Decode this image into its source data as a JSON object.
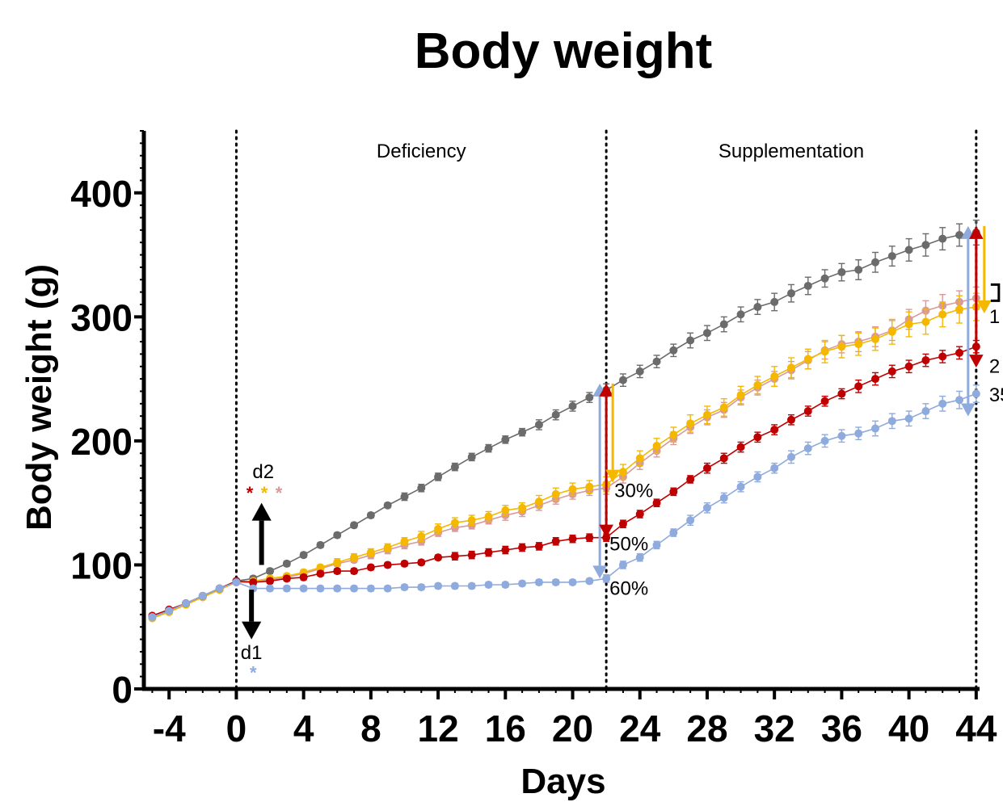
{
  "chart_data": {
    "type": "line",
    "title": "Body weight",
    "xlabel": "Days",
    "ylabel": "Body weight (g)",
    "xlim": [
      -5.5,
      44.2
    ],
    "ylim": [
      0,
      450
    ],
    "xticks": [
      -4,
      0,
      4,
      8,
      12,
      16,
      20,
      24,
      28,
      32,
      36,
      40,
      44
    ],
    "yticks": [
      0,
      100,
      200,
      300,
      400
    ],
    "phase_lines": [
      0,
      22,
      44
    ],
    "phases": [
      {
        "label": "Deficiency",
        "x": 11
      },
      {
        "label": "Supplementation",
        "x": 33
      }
    ],
    "series": [
      {
        "color": "#6b6b6b",
        "x": [
          -5,
          -4,
          -3,
          -2,
          -1,
          0,
          1,
          2,
          3,
          4,
          5,
          6,
          7,
          8,
          9,
          10,
          11,
          12,
          13,
          14,
          15,
          16,
          17,
          18,
          19,
          20,
          21,
          22,
          23,
          24,
          25,
          26,
          27,
          28,
          29,
          30,
          31,
          32,
          33,
          34,
          35,
          36,
          37,
          38,
          39,
          40,
          41,
          42,
          43,
          44
        ],
        "y": [
          58,
          63,
          69,
          75,
          81,
          87,
          89,
          95,
          101,
          108,
          116,
          124,
          132,
          140,
          148,
          155,
          162,
          171,
          179,
          187,
          194,
          201,
          207,
          213,
          221,
          228,
          235,
          241,
          249,
          256,
          264,
          273,
          281,
          287,
          294,
          302,
          308,
          312,
          319,
          325,
          331,
          336,
          338,
          344,
          349,
          354,
          358,
          363,
          366,
          368
        ],
        "err": [
          1,
          1,
          1,
          1,
          1,
          1,
          2,
          2,
          2,
          2,
          2,
          2,
          2,
          2,
          2,
          3,
          3,
          3,
          3,
          3,
          3,
          3,
          3,
          4,
          4,
          4,
          4,
          5,
          5,
          5,
          5,
          5,
          6,
          6,
          6,
          6,
          6,
          7,
          7,
          7,
          7,
          7,
          8,
          8,
          8,
          9,
          9,
          9,
          9,
          10
        ]
      },
      {
        "color": "#d89a9a",
        "x": [
          -5,
          -4,
          -3,
          -2,
          -1,
          0,
          1,
          2,
          3,
          4,
          5,
          6,
          7,
          8,
          9,
          10,
          11,
          12,
          13,
          14,
          15,
          16,
          17,
          18,
          19,
          20,
          21,
          22,
          23,
          24,
          25,
          26,
          27,
          28,
          29,
          30,
          31,
          32,
          33,
          34,
          35,
          36,
          37,
          38,
          39,
          40,
          41,
          42,
          43,
          44
        ],
        "y": [
          58,
          62,
          68,
          74,
          80,
          86,
          86,
          88,
          90,
          93,
          97,
          101,
          104,
          108,
          112,
          116,
          119,
          126,
          130,
          132,
          136,
          140,
          143,
          148,
          153,
          157,
          160,
          162,
          171,
          182,
          192,
          202,
          211,
          219,
          225,
          235,
          243,
          250,
          257,
          265,
          273,
          278,
          280,
          284,
          289,
          298,
          305,
          309,
          312,
          315
        ],
        "err": [
          1,
          1,
          1,
          1,
          1,
          1,
          2,
          2,
          2,
          2,
          2,
          2,
          2,
          3,
          3,
          3,
          3,
          3,
          3,
          3,
          3,
          4,
          4,
          4,
          4,
          4,
          4,
          5,
          5,
          5,
          5,
          5,
          5,
          6,
          6,
          6,
          6,
          6,
          7,
          7,
          7,
          7,
          8,
          8,
          8,
          8,
          8,
          9,
          9,
          9
        ]
      },
      {
        "color": "#f5b800",
        "x": [
          -5,
          -4,
          -3,
          -2,
          -1,
          0,
          1,
          2,
          3,
          4,
          5,
          6,
          7,
          8,
          9,
          10,
          11,
          12,
          13,
          14,
          15,
          16,
          17,
          18,
          19,
          20,
          21,
          22,
          23,
          24,
          25,
          26,
          27,
          28,
          29,
          30,
          31,
          32,
          33,
          34,
          35,
          36,
          37,
          38,
          39,
          40,
          41,
          42,
          43,
          44
        ],
        "y": [
          57,
          62,
          68,
          74,
          80,
          86,
          87,
          89,
          91,
          94,
          98,
          102,
          106,
          110,
          114,
          119,
          123,
          129,
          134,
          136,
          139,
          144,
          146,
          151,
          157,
          161,
          163,
          165,
          175,
          186,
          196,
          205,
          214,
          221,
          227,
          237,
          245,
          252,
          259,
          266,
          272,
          276,
          278,
          282,
          288,
          294,
          296,
          302,
          306,
          308
        ],
        "err": [
          1,
          1,
          1,
          1,
          1,
          1,
          2,
          2,
          2,
          2,
          2,
          3,
          3,
          3,
          3,
          3,
          4,
          4,
          4,
          4,
          4,
          4,
          4,
          5,
          5,
          5,
          5,
          6,
          6,
          6,
          6,
          6,
          7,
          7,
          7,
          7,
          7,
          8,
          8,
          8,
          9,
          9,
          9,
          9,
          10,
          10,
          10,
          10,
          11,
          11
        ]
      },
      {
        "color": "#c00000",
        "x": [
          -5,
          -4,
          -3,
          -2,
          -1,
          0,
          1,
          2,
          3,
          4,
          5,
          6,
          7,
          8,
          9,
          10,
          11,
          12,
          13,
          14,
          15,
          16,
          17,
          18,
          19,
          20,
          21,
          22,
          23,
          24,
          25,
          26,
          27,
          28,
          29,
          30,
          31,
          32,
          33,
          34,
          35,
          36,
          37,
          38,
          39,
          40,
          41,
          42,
          43,
          44
        ],
        "y": [
          59,
          64,
          69,
          75,
          81,
          87,
          86,
          87,
          89,
          90,
          93,
          95,
          95,
          98,
          100,
          101,
          102,
          106,
          107,
          108,
          110,
          112,
          114,
          115,
          119,
          121,
          122,
          122,
          133,
          141,
          150,
          159,
          169,
          178,
          186,
          195,
          203,
          209,
          217,
          224,
          232,
          238,
          244,
          250,
          256,
          260,
          265,
          268,
          271,
          276
        ],
        "err": [
          1,
          1,
          1,
          1,
          1,
          1,
          2,
          2,
          2,
          2,
          2,
          2,
          2,
          2,
          2,
          2,
          2,
          2,
          3,
          3,
          3,
          3,
          3,
          3,
          3,
          3,
          3,
          3,
          3,
          3,
          3,
          3,
          3,
          4,
          4,
          4,
          4,
          4,
          4,
          4,
          4,
          4,
          5,
          5,
          5,
          5,
          5,
          5,
          5,
          5
        ]
      },
      {
        "color": "#8faadc",
        "x": [
          -5,
          -4,
          -3,
          -2,
          -1,
          0,
          1,
          2,
          3,
          4,
          5,
          6,
          7,
          8,
          9,
          10,
          11,
          12,
          13,
          14,
          15,
          16,
          17,
          18,
          19,
          20,
          21,
          22,
          23,
          24,
          25,
          26,
          27,
          28,
          29,
          30,
          31,
          32,
          33,
          34,
          35,
          36,
          37,
          38,
          39,
          40,
          41,
          42,
          43,
          44
        ],
        "y": [
          58,
          63,
          69,
          75,
          81,
          86,
          81,
          81,
          81,
          81,
          81,
          81,
          81,
          81,
          81,
          82,
          82,
          83,
          83,
          83,
          84,
          84,
          85,
          86,
          86,
          86,
          87,
          89,
          100,
          106,
          116,
          126,
          136,
          146,
          154,
          163,
          171,
          178,
          187,
          194,
          200,
          204,
          206,
          210,
          216,
          218,
          224,
          230,
          233,
          238
        ],
        "err": [
          1,
          1,
          1,
          1,
          1,
          1,
          2,
          2,
          2,
          2,
          2,
          2,
          2,
          2,
          2,
          2,
          2,
          2,
          2,
          2,
          2,
          2,
          2,
          2,
          2,
          2,
          2,
          3,
          3,
          3,
          3,
          3,
          4,
          4,
          4,
          4,
          4,
          4,
          5,
          5,
          5,
          5,
          5,
          6,
          6,
          6,
          6,
          6,
          7,
          7
        ]
      }
    ],
    "annotations": {
      "d1_label": "d1",
      "d2_label": "d2",
      "d1_star_color": "#8faadc",
      "d2_star_colors": [
        "#c00000",
        "#f5b800",
        "#d89a9a"
      ],
      "star": "*",
      "day22_labels": [
        "30%",
        "50%",
        "60%"
      ],
      "day44_labels": [
        "1",
        "2",
        "35"
      ],
      "arrow_color_black": "#000000"
    }
  }
}
